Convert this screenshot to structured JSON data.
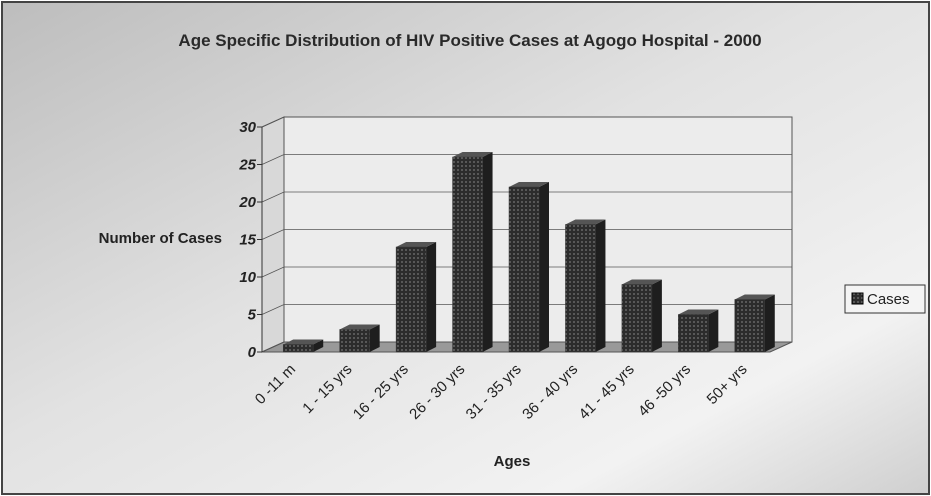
{
  "chart_data": {
    "type": "bar3d",
    "title": "Age Specific Distribution of HIV Positive Cases at Agogo Hospital - 2000",
    "x_label": "Ages",
    "y_label": "Number of Cases",
    "categories": [
      "0 -11 m",
      "1 - 15 yrs",
      "16 - 25 yrs",
      "26 - 30 yrs",
      "31 - 35 yrs",
      "36 - 40 yrs",
      "41 - 45 yrs",
      "46 -50 yrs",
      "50+ yrs"
    ],
    "series": [
      {
        "name": "Cases",
        "color": "#3a3a3a",
        "values": [
          1,
          3,
          14,
          26,
          22,
          17,
          9,
          5,
          7
        ]
      }
    ],
    "ylim": [
      0,
      30
    ],
    "yticks": [
      0,
      5,
      10,
      15,
      20,
      25,
      30
    ],
    "grid": true,
    "legend": "right"
  }
}
